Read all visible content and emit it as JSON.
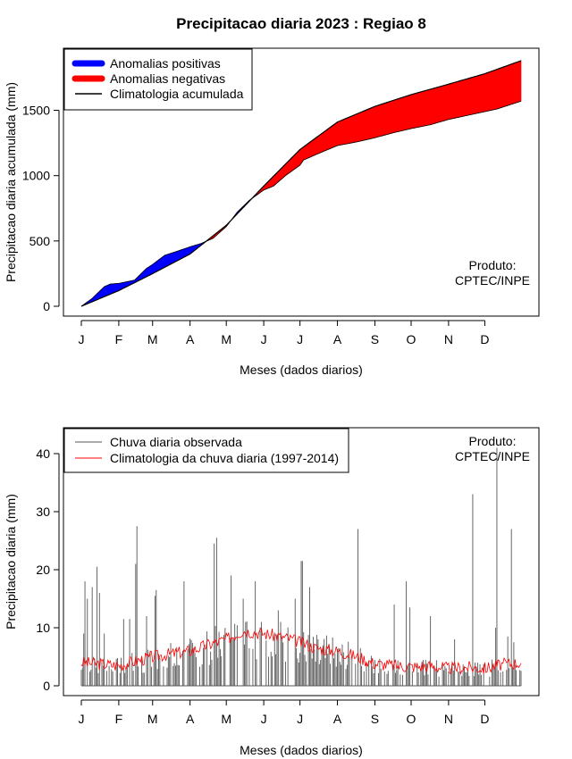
{
  "chart_data": [
    {
      "type": "area",
      "title": "Precipitacao diaria 2023 : Regiao 8",
      "xlabel": "Meses (dados diarios)",
      "ylabel": "Precipitacao diaria acumulada (mm)",
      "months": [
        "J",
        "F",
        "M",
        "A",
        "M",
        "J",
        "J",
        "A",
        "S",
        "O",
        "N",
        "D"
      ],
      "xlim": [
        1,
        365
      ],
      "ylim": [
        0,
        1900
      ],
      "yticks": [
        0,
        500,
        1000,
        1500
      ],
      "legend": {
        "position": "top-left",
        "entries": [
          {
            "label": "Anomalias positivas",
            "color": "#0000ff",
            "style": "thick"
          },
          {
            "label": "Anomalias negativas",
            "color": "#ff0000",
            "style": "thick"
          },
          {
            "label": "Climatologia acumulada",
            "color": "#000000",
            "style": "line"
          }
        ]
      },
      "annotation": [
        "Produto:",
        "CPTEC/INPE"
      ],
      "climatology_accumulated": {
        "day": [
          1,
          32,
          60,
          91,
          121,
          152,
          182,
          213,
          244,
          274,
          305,
          335,
          365
        ],
        "value": [
          0,
          120,
          250,
          400,
          620,
          920,
          1200,
          1410,
          1530,
          1620,
          1700,
          1780,
          1880
        ]
      },
      "observed_accumulated": {
        "day": [
          1,
          10,
          20,
          25,
          32,
          45,
          55,
          60,
          70,
          80,
          91,
          100,
          110,
          121,
          130,
          140,
          152,
          160,
          170,
          182,
          185,
          200,
          213,
          230,
          244,
          260,
          274,
          290,
          305,
          310,
          320,
          335,
          345,
          355,
          365
        ],
        "value": [
          0,
          60,
          150,
          170,
          175,
          200,
          290,
          320,
          390,
          420,
          455,
          480,
          520,
          610,
          720,
          810,
          890,
          920,
          1000,
          1080,
          1120,
          1180,
          1230,
          1260,
          1290,
          1330,
          1360,
          1390,
          1430,
          1440,
          1460,
          1490,
          1510,
          1540,
          1570
        ]
      }
    },
    {
      "type": "line",
      "xlabel": "Meses (dados diarios)",
      "ylabel": "Precipitacao diaria (mm)",
      "months": [
        "J",
        "F",
        "M",
        "A",
        "M",
        "J",
        "J",
        "A",
        "S",
        "O",
        "N",
        "D"
      ],
      "xlim": [
        1,
        365
      ],
      "ylim": [
        0,
        45
      ],
      "yticks": [
        0,
        10,
        20,
        30,
        40
      ],
      "legend": {
        "position": "top-left",
        "entries": [
          {
            "label": "Chuva diaria observada",
            "color": "#555555"
          },
          {
            "label": "Climatologia da chuva diaria (1997-2014)",
            "color": "#ff0000"
          }
        ]
      },
      "annotation": [
        "Produto:",
        "CPTEC/INPE"
      ],
      "climatology_daily": {
        "day": [
          1,
          15,
          32,
          45,
          60,
          75,
          91,
          105,
          121,
          135,
          152,
          165,
          175,
          182,
          195,
          213,
          230,
          244,
          260,
          274,
          290,
          305,
          320,
          335,
          345,
          355,
          365
        ],
        "value": [
          4.0,
          3.8,
          3.5,
          4.2,
          5.0,
          5.5,
          6.0,
          7.0,
          8.0,
          9.5,
          9.0,
          8.5,
          8.0,
          7.5,
          6.5,
          6.0,
          5.0,
          3.8,
          3.5,
          3.3,
          3.4,
          3.0,
          3.2,
          3.0,
          3.5,
          3.8,
          4.0
        ]
      },
      "observed_peaks": [
        {
          "day": 3,
          "value": 9.0
        },
        {
          "day": 4,
          "value": 18.0
        },
        {
          "day": 6,
          "value": 15.0
        },
        {
          "day": 10,
          "value": 17.0
        },
        {
          "day": 14,
          "value": 20.5
        },
        {
          "day": 16,
          "value": 16.0
        },
        {
          "day": 20,
          "value": 9.0
        },
        {
          "day": 36,
          "value": 11.5
        },
        {
          "day": 41,
          "value": 11.5
        },
        {
          "day": 46,
          "value": 21.0
        },
        {
          "day": 47,
          "value": 27.5
        },
        {
          "day": 55,
          "value": 12.0
        },
        {
          "day": 62,
          "value": 15.5
        },
        {
          "day": 63,
          "value": 16.5
        },
        {
          "day": 86,
          "value": 18.0
        },
        {
          "day": 111,
          "value": 24.5
        },
        {
          "day": 113,
          "value": 25.5
        },
        {
          "day": 125,
          "value": 19.0
        },
        {
          "day": 135,
          "value": 15.0
        },
        {
          "day": 145,
          "value": 18.0
        },
        {
          "day": 150,
          "value": 11.0
        },
        {
          "day": 164,
          "value": 13.0
        },
        {
          "day": 178,
          "value": 15.0
        },
        {
          "day": 183,
          "value": 21.5
        },
        {
          "day": 184,
          "value": 21.5
        },
        {
          "day": 190,
          "value": 17.0
        },
        {
          "day": 230,
          "value": 27.0
        },
        {
          "day": 260,
          "value": 14.0
        },
        {
          "day": 270,
          "value": 18.0
        },
        {
          "day": 273,
          "value": 13.5
        },
        {
          "day": 290,
          "value": 12.0
        },
        {
          "day": 310,
          "value": 8.0
        },
        {
          "day": 325,
          "value": 33.0
        },
        {
          "day": 344,
          "value": 10.0
        },
        {
          "day": 345,
          "value": 41.0
        },
        {
          "day": 354,
          "value": 8.5
        },
        {
          "day": 357,
          "value": 27.0
        },
        {
          "day": 359,
          "value": 7.5
        }
      ]
    }
  ]
}
